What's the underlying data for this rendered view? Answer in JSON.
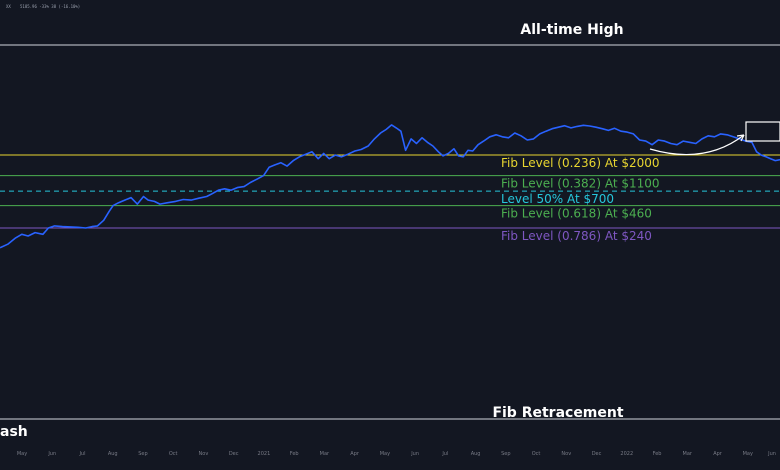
{
  "header": {
    "symbol": "XX",
    "quote": "5185.96  -33% 38  (-16.10%)"
  },
  "annotations": {
    "ath": "All-time High",
    "retracement": "Fib Retracement",
    "crash": "ash"
  },
  "fib_levels": [
    {
      "key": "l0236",
      "label": "Fib Level (0.236) At $2000",
      "price": 2000,
      "color": "#e8d630",
      "dashed": false
    },
    {
      "key": "l0382",
      "label": "Fib Level (0.382) At $1100",
      "price": 1100,
      "color": "#4caf50",
      "dashed": false
    },
    {
      "key": "l0500",
      "label": "Level 50% At $700",
      "price": 700,
      "color": "#26c6da",
      "dashed": true
    },
    {
      "key": "l0618",
      "label": "Fib Level (0.618) At $460",
      "price": 460,
      "color": "#4caf50",
      "dashed": false
    },
    {
      "key": "l0786",
      "label": "Fib Level (0.786) At $240",
      "price": 240,
      "color": "#7e57c2",
      "dashed": false
    }
  ],
  "colors": {
    "background": "#131722",
    "price_line": "#2962ff",
    "ath_line": "#d1d4dc",
    "bottom_line": "#d1d4dc",
    "box": "#ffffff",
    "arrow": "#ffffff",
    "tick_text": "#787b86"
  },
  "chart_data": {
    "type": "line",
    "title": "",
    "xlabel": "",
    "ylabel": "",
    "x_ticks": [
      "May",
      "Jun",
      "Jul",
      "Aug",
      "Sep",
      "Oct",
      "Nov",
      "Dec",
      "2021",
      "Feb",
      "Mar",
      "Apr",
      "May",
      "Jun",
      "Jul",
      "Aug",
      "Sep",
      "Oct",
      "Nov",
      "Dec",
      "2022",
      "Feb",
      "Mar",
      "Apr",
      "May",
      "Jun"
    ],
    "series": [
      {
        "name": "",
        "values": [
          [
            0.0,
            135
          ],
          [
            0.01,
            150
          ],
          [
            0.02,
            180
          ],
          [
            0.028,
            200
          ],
          [
            0.036,
            190
          ],
          [
            0.045,
            210
          ],
          [
            0.055,
            200
          ],
          [
            0.062,
            240
          ],
          [
            0.07,
            255
          ],
          [
            0.08,
            250
          ],
          [
            0.09,
            248
          ],
          [
            0.1,
            245
          ],
          [
            0.11,
            240
          ],
          [
            0.118,
            250
          ],
          [
            0.125,
            255
          ],
          [
            0.133,
            300
          ],
          [
            0.14,
            390
          ],
          [
            0.145,
            460
          ],
          [
            0.152,
            500
          ],
          [
            0.16,
            540
          ],
          [
            0.168,
            580
          ],
          [
            0.176,
            480
          ],
          [
            0.184,
            600
          ],
          [
            0.19,
            540
          ],
          [
            0.198,
            520
          ],
          [
            0.205,
            480
          ],
          [
            0.215,
            500
          ],
          [
            0.225,
            520
          ],
          [
            0.235,
            550
          ],
          [
            0.245,
            540
          ],
          [
            0.255,
            570
          ],
          [
            0.265,
            600
          ],
          [
            0.272,
            650
          ],
          [
            0.28,
            720
          ],
          [
            0.288,
            750
          ],
          [
            0.296,
            720
          ],
          [
            0.305,
            780
          ],
          [
            0.313,
            800
          ],
          [
            0.321,
            900
          ],
          [
            0.33,
            1000
          ],
          [
            0.338,
            1100
          ],
          [
            0.345,
            1400
          ],
          [
            0.352,
            1500
          ],
          [
            0.36,
            1600
          ],
          [
            0.368,
            1450
          ],
          [
            0.376,
            1700
          ],
          [
            0.384,
            1900
          ],
          [
            0.392,
            2050
          ],
          [
            0.4,
            2200
          ],
          [
            0.408,
            1800
          ],
          [
            0.415,
            2100
          ],
          [
            0.422,
            1800
          ],
          [
            0.43,
            2000
          ],
          [
            0.438,
            1900
          ],
          [
            0.446,
            2050
          ],
          [
            0.455,
            2250
          ],
          [
            0.463,
            2350
          ],
          [
            0.472,
            2600
          ],
          [
            0.48,
            3200
          ],
          [
            0.488,
            3800
          ],
          [
            0.495,
            4200
          ],
          [
            0.502,
            4800
          ],
          [
            0.508,
            4400
          ],
          [
            0.514,
            4000
          ],
          [
            0.52,
            2300
          ],
          [
            0.527,
            3200
          ],
          [
            0.534,
            2800
          ],
          [
            0.541,
            3300
          ],
          [
            0.548,
            2900
          ],
          [
            0.555,
            2600
          ],
          [
            0.562,
            2200
          ],
          [
            0.568,
            1950
          ],
          [
            0.575,
            2100
          ],
          [
            0.582,
            2400
          ],
          [
            0.588,
            1950
          ],
          [
            0.594,
            1900
          ],
          [
            0.6,
            2300
          ],
          [
            0.606,
            2250
          ],
          [
            0.613,
            2700
          ],
          [
            0.62,
            3000
          ],
          [
            0.628,
            3400
          ],
          [
            0.636,
            3600
          ],
          [
            0.644,
            3400
          ],
          [
            0.652,
            3300
          ],
          [
            0.66,
            3800
          ],
          [
            0.668,
            3500
          ],
          [
            0.676,
            3100
          ],
          [
            0.684,
            3200
          ],
          [
            0.692,
            3700
          ],
          [
            0.7,
            4000
          ],
          [
            0.708,
            4300
          ],
          [
            0.716,
            4500
          ],
          [
            0.724,
            4700
          ],
          [
            0.732,
            4400
          ],
          [
            0.74,
            4600
          ],
          [
            0.748,
            4750
          ],
          [
            0.756,
            4650
          ],
          [
            0.764,
            4500
          ],
          [
            0.772,
            4300
          ],
          [
            0.78,
            4100
          ],
          [
            0.788,
            4350
          ],
          [
            0.796,
            4000
          ],
          [
            0.804,
            3900
          ],
          [
            0.812,
            3700
          ],
          [
            0.82,
            3100
          ],
          [
            0.828,
            3000
          ],
          [
            0.836,
            2700
          ],
          [
            0.844,
            3100
          ],
          [
            0.852,
            3000
          ],
          [
            0.86,
            2800
          ],
          [
            0.868,
            2700
          ],
          [
            0.876,
            3000
          ],
          [
            0.884,
            2900
          ],
          [
            0.892,
            2800
          ],
          [
            0.9,
            3200
          ],
          [
            0.908,
            3500
          ],
          [
            0.916,
            3400
          ],
          [
            0.924,
            3700
          ],
          [
            0.932,
            3600
          ],
          [
            0.94,
            3400
          ],
          [
            0.948,
            3200
          ],
          [
            0.956,
            3000
          ],
          [
            0.964,
            2900
          ],
          [
            0.97,
            2200
          ],
          [
            0.976,
            2000
          ],
          [
            0.982,
            1900
          ],
          [
            0.988,
            1800
          ],
          [
            0.994,
            1700
          ],
          [
            1.0,
            1750
          ]
        ]
      }
    ],
    "yscale": "log",
    "grid": false,
    "legend": "none"
  }
}
